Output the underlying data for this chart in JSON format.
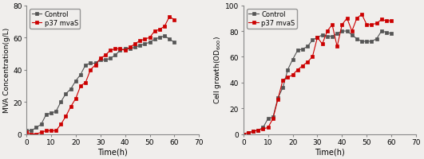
{
  "left_ylabel": "MVA Concentration(g/L)",
  "left_xlabel": "Time(h)",
  "left_ylim": [
    0,
    80
  ],
  "left_xlim": [
    0,
    70
  ],
  "left_yticks": [
    0,
    20,
    40,
    60,
    80
  ],
  "left_xticks": [
    0,
    10,
    20,
    30,
    40,
    50,
    60,
    70
  ],
  "left_control_x": [
    0,
    2,
    4,
    6,
    8,
    10,
    12,
    14,
    16,
    18,
    20,
    22,
    24,
    26,
    28,
    30,
    32,
    34,
    36,
    38,
    40,
    42,
    44,
    46,
    48,
    50,
    52,
    54,
    56,
    58,
    60
  ],
  "left_control_y": [
    2,
    2,
    4,
    6,
    12,
    13,
    14,
    20,
    25,
    28,
    33,
    37,
    43,
    44,
    44,
    46,
    46,
    47,
    49,
    52,
    53,
    53,
    54,
    55,
    56,
    57,
    59,
    60,
    61,
    59,
    57
  ],
  "left_p37_x": [
    0,
    2,
    4,
    6,
    8,
    10,
    12,
    14,
    16,
    18,
    20,
    22,
    24,
    26,
    28,
    30,
    32,
    34,
    36,
    38,
    40,
    42,
    44,
    46,
    48,
    50,
    52,
    54,
    56,
    58,
    60
  ],
  "left_p37_y": [
    1,
    0,
    0,
    1,
    2,
    2,
    2,
    6,
    11,
    17,
    22,
    30,
    32,
    40,
    43,
    47,
    49,
    52,
    53,
    53,
    52,
    54,
    56,
    58,
    59,
    60,
    64,
    65,
    67,
    73,
    71
  ],
  "right_ylabel": "Cell growth(OD$_{600}$)",
  "right_xlabel": "Time(h)",
  "right_ylim": [
    0,
    100
  ],
  "right_xlim": [
    0,
    70
  ],
  "right_yticks": [
    0,
    20,
    40,
    60,
    80,
    100
  ],
  "right_xticks": [
    0,
    10,
    20,
    30,
    40,
    50,
    60,
    70
  ],
  "right_control_x": [
    0,
    2,
    4,
    6,
    8,
    10,
    12,
    14,
    16,
    18,
    20,
    22,
    24,
    26,
    28,
    30,
    32,
    34,
    36,
    38,
    40,
    42,
    44,
    46,
    48,
    50,
    52,
    54,
    56,
    58,
    60
  ],
  "right_control_y": [
    0,
    1,
    2,
    3,
    5,
    12,
    13,
    28,
    36,
    50,
    58,
    65,
    66,
    68,
    73,
    75,
    77,
    76,
    76,
    78,
    80,
    80,
    77,
    74,
    72,
    72,
    72,
    74,
    80,
    79,
    78
  ],
  "right_p37_x": [
    0,
    2,
    4,
    6,
    8,
    10,
    12,
    14,
    16,
    18,
    20,
    22,
    24,
    26,
    28,
    30,
    32,
    34,
    36,
    38,
    40,
    42,
    44,
    46,
    48,
    50,
    52,
    54,
    56,
    58,
    60
  ],
  "right_p37_y": [
    0,
    1,
    2,
    3,
    4,
    5,
    12,
    27,
    42,
    44,
    46,
    50,
    53,
    56,
    60,
    75,
    70,
    80,
    85,
    68,
    85,
    90,
    80,
    90,
    93,
    85,
    85,
    86,
    89,
    88,
    88
  ],
  "color_control": "#555555",
  "color_p37": "#cc0000",
  "legend_control": "Control",
  "legend_p37": "p37 mvaS",
  "linewidth": 0.8,
  "markersize": 3.0
}
